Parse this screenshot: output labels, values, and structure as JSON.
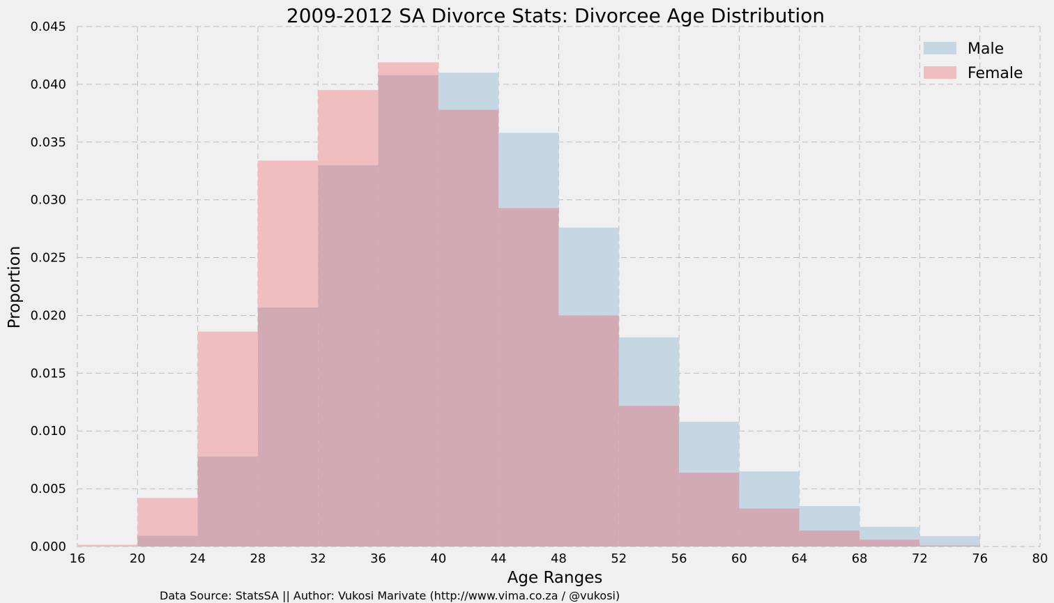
{
  "chart_data": {
    "type": "histogram",
    "title": "2009-2012 SA Divorce Stats: Divorcee Age Distribution",
    "xlabel": "Age Ranges",
    "ylabel": "Proportion",
    "xlim": [
      16,
      80
    ],
    "ylim": [
      0,
      0.045
    ],
    "xticks": [
      "16",
      "20",
      "24",
      "28",
      "32",
      "36",
      "40",
      "44",
      "48",
      "52",
      "56",
      "60",
      "64",
      "68",
      "72",
      "76",
      "80"
    ],
    "yticks": [
      "0.000",
      "0.005",
      "0.010",
      "0.015",
      "0.020",
      "0.025",
      "0.030",
      "0.035",
      "0.040",
      "0.045"
    ],
    "bin_edges": [
      16,
      20,
      24,
      28,
      32,
      36,
      40,
      44,
      48,
      52,
      56,
      60,
      64,
      68,
      72,
      76
    ],
    "grid": true,
    "legend_position": "top-right",
    "series": [
      {
        "name": "Male",
        "color": "#c5d7e3",
        "values": [
          0.0,
          0.00095,
          0.0078,
          0.0207,
          0.033,
          0.0408,
          0.041,
          0.0358,
          0.0276,
          0.0181,
          0.0108,
          0.0065,
          0.0035,
          0.0017,
          0.0009
        ]
      },
      {
        "name": "Female",
        "color": "#f1bec0",
        "values": [
          0.00015,
          0.0042,
          0.0186,
          0.0334,
          0.0395,
          0.0419,
          0.0378,
          0.0293,
          0.02,
          0.0122,
          0.0064,
          0.0033,
          0.0014,
          0.0006,
          0.0001
        ]
      }
    ],
    "overlap_color": "#d2aab4"
  },
  "footer": {
    "source_text": "Data Source: StatsSA || Author: Vukosi Marivate (http://www.vima.co.za / @vukosi)"
  }
}
